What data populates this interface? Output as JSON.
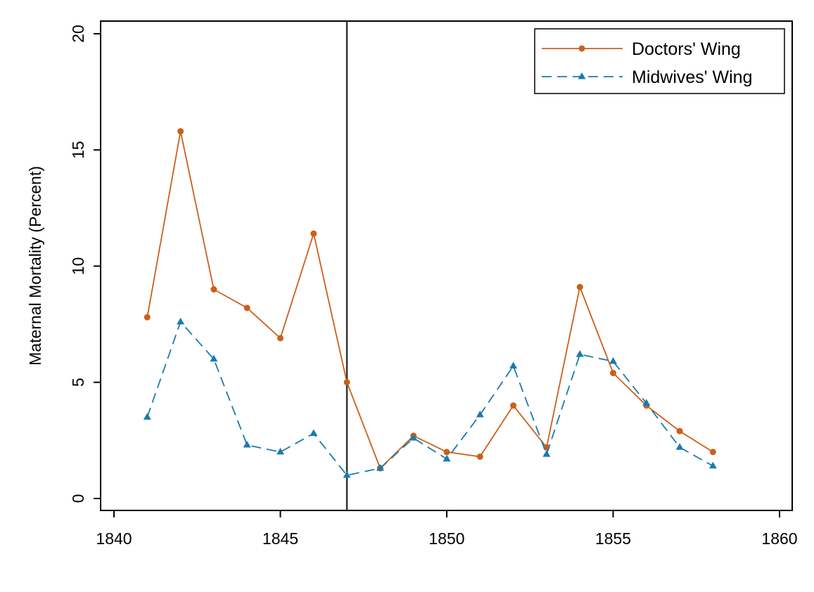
{
  "chart_data": {
    "type": "line",
    "title": "",
    "xlabel": "",
    "ylabel": "Maternal Mortality (Percent)",
    "xlim": [
      1840,
      1860
    ],
    "ylim": [
      0,
      20
    ],
    "xticks": [
      "1840",
      "1845",
      "1850",
      "1855",
      "1860"
    ],
    "yticks": [
      "0",
      "5",
      "10",
      "15",
      "20"
    ],
    "grid": false,
    "legend_position": "top-right",
    "reference_line_x": 1847,
    "x": [
      1841,
      1842,
      1843,
      1844,
      1845,
      1846,
      1847,
      1848,
      1849,
      1850,
      1851,
      1852,
      1853,
      1854,
      1855,
      1856,
      1857,
      1858
    ],
    "series": [
      {
        "name": "Doctors' Wing",
        "color": "#cc5f1a",
        "marker": "circle",
        "line_style": "solid",
        "values": [
          7.8,
          15.8,
          9.0,
          8.2,
          6.9,
          11.4,
          5.0,
          1.3,
          2.7,
          2.0,
          1.8,
          4.0,
          2.2,
          9.1,
          5.4,
          4.0,
          2.9,
          2.0
        ]
      },
      {
        "name": "Midwives' Wing",
        "color": "#1a7ab0",
        "marker": "triangle",
        "line_style": "dashed",
        "values": [
          3.5,
          7.6,
          6.0,
          2.3,
          2.0,
          2.8,
          1.0,
          1.3,
          2.6,
          1.7,
          3.6,
          5.7,
          1.9,
          6.2,
          5.9,
          4.1,
          2.2,
          1.4
        ]
      }
    ]
  }
}
